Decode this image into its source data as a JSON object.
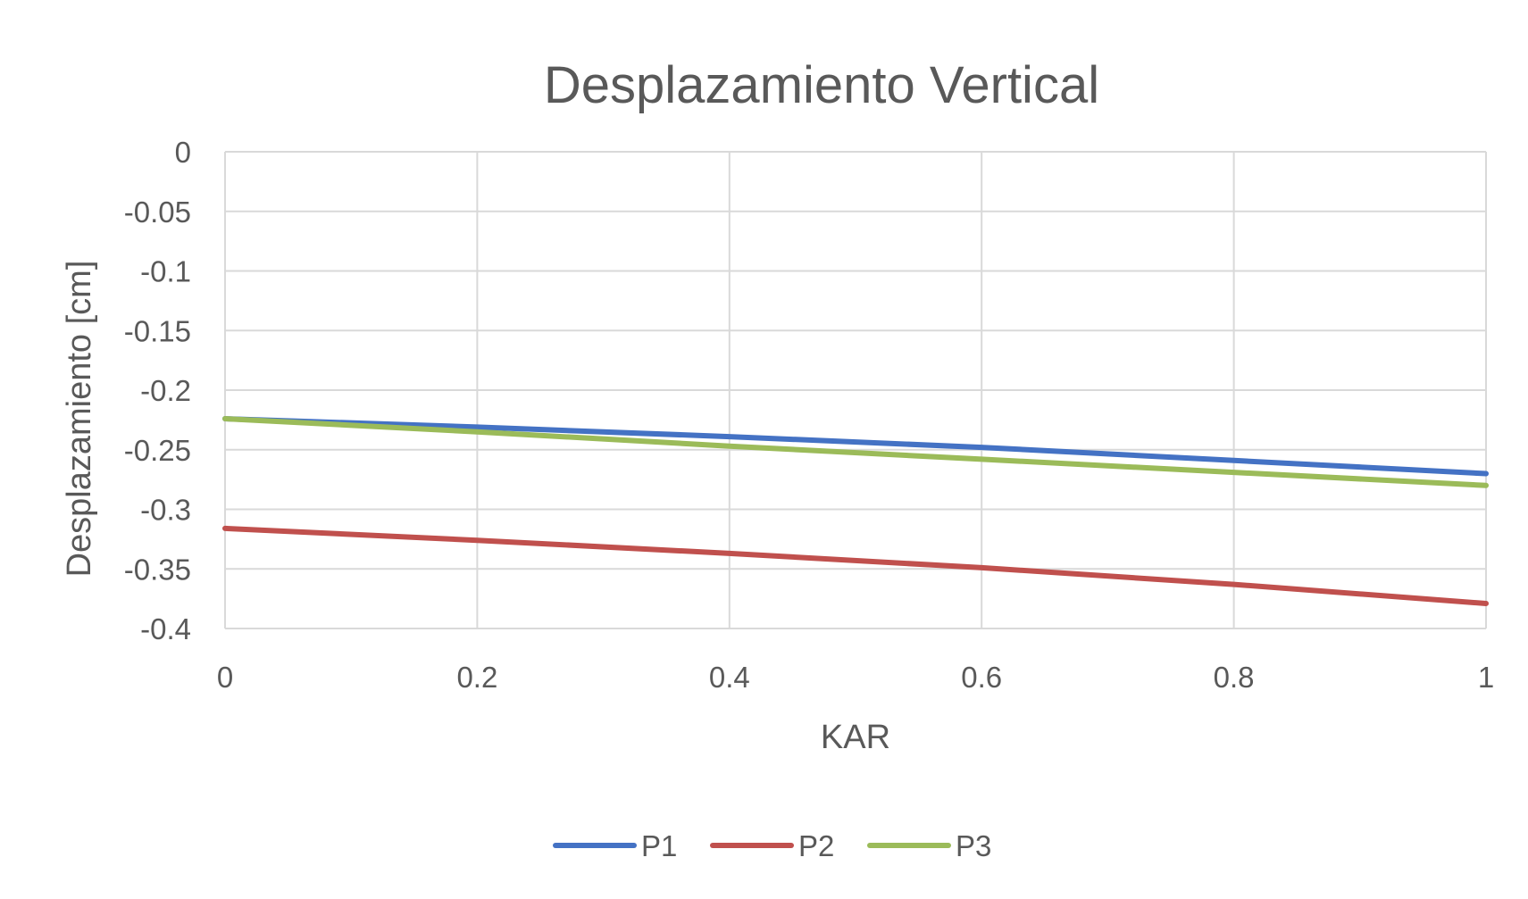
{
  "chart_data": {
    "type": "line",
    "title": "Desplazamiento Vertical",
    "xlabel": "KAR",
    "ylabel": "Desplazamiento [cm]",
    "xlim": [
      0,
      1
    ],
    "ylim": [
      -0.4,
      0
    ],
    "x_ticks": [
      0,
      0.2,
      0.4,
      0.6,
      0.8,
      1
    ],
    "x_tick_labels": [
      "0",
      "0.2",
      "0.4",
      "0.6",
      "0.8",
      "1"
    ],
    "y_ticks": [
      0,
      -0.05,
      -0.1,
      -0.15,
      -0.2,
      -0.25,
      -0.3,
      -0.35,
      -0.4
    ],
    "y_tick_labels": [
      "0",
      "-0.05",
      "-0.1",
      "-0.15",
      "-0.2",
      "-0.25",
      "-0.3",
      "-0.35",
      "-0.4"
    ],
    "grid": true,
    "legend_position": "bottom",
    "x": [
      0,
      0.2,
      0.4,
      0.6,
      0.8,
      1
    ],
    "series": [
      {
        "name": "P1",
        "color": "#4472C4",
        "values": [
          -0.224,
          -0.231,
          -0.239,
          -0.248,
          -0.259,
          -0.27
        ]
      },
      {
        "name": "P2",
        "color": "#C0504D",
        "values": [
          -0.316,
          -0.326,
          -0.337,
          -0.349,
          -0.363,
          -0.379
        ]
      },
      {
        "name": "P3",
        "color": "#9BBB59",
        "values": [
          -0.224,
          -0.235,
          -0.247,
          -0.258,
          -0.269,
          -0.28
        ]
      }
    ]
  },
  "colors": {
    "grid": "#D9D9D9",
    "text": "#595959"
  }
}
